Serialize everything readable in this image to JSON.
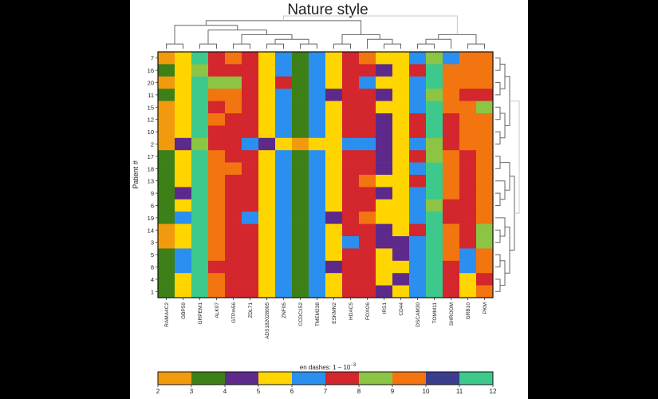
{
  "chart_data": {
    "type": "heatmap",
    "title": "Nature style",
    "ylabel": "Patient #",
    "rows": [
      "7",
      "16",
      "20",
      "11",
      "15",
      "12",
      "10",
      "2",
      "17",
      "18",
      "13",
      "9",
      "6",
      "19",
      "14",
      "3",
      "5",
      "8",
      "4",
      "1"
    ],
    "columns": [
      "RAMA4C2",
      "GBP59",
      "GRPEM1",
      "ALK07",
      "GTPm56",
      "ZDL71",
      "ADS182028005",
      "ZNF05",
      "CCDC152",
      "TMEM238",
      "ESKMN2",
      "HDAC5",
      "FOXO6",
      "IRS1",
      "CD44",
      "DSCAM30",
      "TOMM11",
      "SHROOM",
      "GRB10",
      "PKM"
    ],
    "colorbar": {
      "label": "en dashes: 1 – 10",
      "label_exponent": "−3",
      "ticks": [
        "2",
        "3",
        "4",
        "5",
        "6",
        "7",
        "8",
        "9",
        "10",
        "11",
        "12"
      ],
      "colors": [
        "#f29a0e",
        "#3d8018",
        "#5d2a8c",
        "#ffd500",
        "#2b8ff0",
        "#d3262d",
        "#8cc443",
        "#f2750f",
        "#3c3d8c",
        "#3cc98b"
      ]
    },
    "grid_lines": false,
    "values": [
      [
        2,
        5,
        11,
        7,
        9,
        7,
        5,
        6,
        3,
        6,
        5,
        7,
        9,
        5,
        5,
        6,
        8,
        6,
        9,
        9
      ],
      [
        3,
        5,
        8,
        7,
        7,
        7,
        5,
        6,
        3,
        6,
        5,
        7,
        7,
        4,
        5,
        7,
        11,
        9,
        9,
        9
      ],
      [
        2,
        5,
        11,
        8,
        8,
        7,
        5,
        7,
        3,
        6,
        5,
        7,
        6,
        5,
        5,
        6,
        11,
        9,
        9,
        9
      ],
      [
        3,
        5,
        11,
        9,
        9,
        7,
        5,
        6,
        3,
        6,
        4,
        7,
        7,
        4,
        5,
        6,
        8,
        9,
        7,
        7
      ],
      [
        2,
        5,
        11,
        7,
        9,
        7,
        5,
        6,
        3,
        6,
        5,
        7,
        7,
        5,
        5,
        6,
        11,
        9,
        9,
        8
      ],
      [
        2,
        5,
        11,
        9,
        7,
        7,
        5,
        6,
        3,
        6,
        5,
        7,
        7,
        4,
        5,
        7,
        11,
        7,
        9,
        9
      ],
      [
        2,
        5,
        11,
        7,
        7,
        7,
        5,
        6,
        3,
        6,
        5,
        7,
        7,
        4,
        5,
        7,
        11,
        7,
        9,
        9
      ],
      [
        2,
        4,
        8,
        7,
        7,
        6,
        4,
        5,
        2,
        5,
        5,
        6,
        6,
        4,
        5,
        6,
        8,
        7,
        9,
        9
      ],
      [
        3,
        5,
        11,
        9,
        7,
        7,
        5,
        6,
        3,
        6,
        5,
        7,
        7,
        4,
        5,
        7,
        8,
        9,
        7,
        9
      ],
      [
        3,
        5,
        12,
        9,
        9,
        7,
        5,
        6,
        3,
        6,
        5,
        7,
        7,
        4,
        5,
        6,
        11,
        9,
        7,
        9
      ],
      [
        3,
        5,
        12,
        9,
        7,
        7,
        5,
        6,
        3,
        6,
        5,
        7,
        9,
        5,
        5,
        7,
        11,
        9,
        7,
        9
      ],
      [
        3,
        4,
        11,
        9,
        7,
        7,
        5,
        6,
        3,
        6,
        5,
        7,
        7,
        4,
        5,
        6,
        11,
        9,
        7,
        9
      ],
      [
        3,
        5,
        11,
        9,
        7,
        7,
        5,
        6,
        3,
        6,
        5,
        7,
        7,
        5,
        5,
        6,
        8,
        7,
        7,
        9
      ],
      [
        3,
        6,
        12,
        9,
        7,
        6,
        5,
        6,
        3,
        6,
        4,
        7,
        9,
        5,
        5,
        6,
        11,
        7,
        7,
        9
      ],
      [
        2,
        5,
        11,
        9,
        7,
        7,
        5,
        6,
        3,
        6,
        5,
        7,
        7,
        4,
        5,
        7,
        11,
        9,
        7,
        8
      ],
      [
        2,
        5,
        11,
        9,
        7,
        7,
        5,
        6,
        3,
        6,
        5,
        6,
        7,
        4,
        4,
        6,
        11,
        9,
        7,
        8
      ],
      [
        3,
        6,
        11,
        9,
        7,
        7,
        5,
        6,
        3,
        6,
        5,
        7,
        7,
        5,
        4,
        6,
        11,
        9,
        6,
        9
      ],
      [
        3,
        6,
        11,
        7,
        7,
        7,
        5,
        6,
        3,
        6,
        4,
        7,
        7,
        5,
        5,
        6,
        11,
        7,
        6,
        9
      ],
      [
        3,
        5,
        11,
        9,
        7,
        7,
        5,
        6,
        3,
        6,
        5,
        7,
        7,
        5,
        4,
        6,
        11,
        7,
        5,
        7
      ],
      [
        3,
        5,
        11,
        9,
        7,
        7,
        5,
        6,
        3,
        6,
        5,
        7,
        7,
        4,
        5,
        6,
        11,
        7,
        5,
        9
      ]
    ]
  }
}
